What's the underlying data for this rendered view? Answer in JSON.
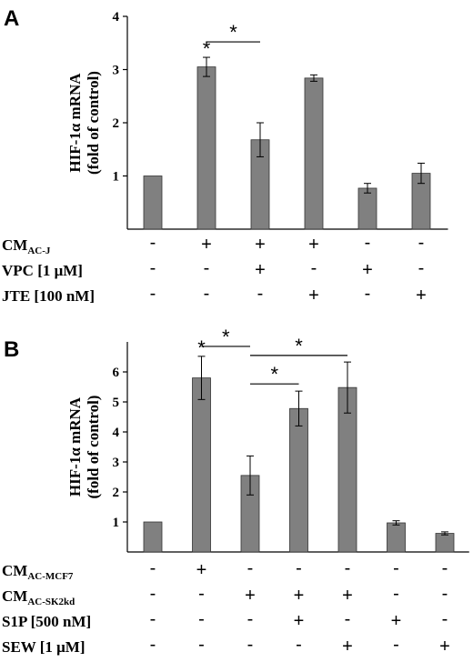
{
  "chart_data": [
    {
      "panel": "A",
      "type": "bar",
      "ylabel_line1": "HIF-1α mRNA",
      "ylabel_line2": "(fold of control)",
      "ylim": [
        0,
        4
      ],
      "yticks": [
        1,
        2,
        3,
        4
      ],
      "values": [
        1.0,
        3.05,
        1.68,
        2.84,
        0.77,
        1.05
      ],
      "errors": [
        0.0,
        0.18,
        0.32,
        0.06,
        0.09,
        0.19
      ],
      "bar_color": "#808080",
      "star_above_bars": [
        1
      ],
      "brackets": [
        {
          "from": 1,
          "to": 2,
          "y": 3.52,
          "label": "*"
        }
      ],
      "conditions": [
        {
          "label": "CM",
          "sub": "AC-J",
          "marks": [
            "-",
            "+",
            "+",
            "+",
            "-",
            "-"
          ]
        },
        {
          "label": "VPC [1 μM]",
          "sub": "",
          "marks": [
            "-",
            "-",
            "+",
            "-",
            "+",
            "-"
          ]
        },
        {
          "label": "JTE [100 nM]",
          "sub": "",
          "marks": [
            "-",
            "-",
            "-",
            "+",
            "-",
            "+"
          ]
        }
      ]
    },
    {
      "panel": "B",
      "type": "bar",
      "ylabel_line1": "HIF-1α mRNA",
      "ylabel_line2": "(fold of control)",
      "ylim": [
        0,
        7
      ],
      "yticks": [
        1,
        2,
        3,
        4,
        5,
        6
      ],
      "values": [
        1.0,
        5.8,
        2.55,
        4.78,
        5.48,
        0.97,
        0.62
      ],
      "errors": [
        0.0,
        0.72,
        0.65,
        0.58,
        0.85,
        0.07,
        0.05
      ],
      "bar_color": "#808080",
      "star_above_bars": [
        1
      ],
      "brackets": [
        {
          "from": 1,
          "to": 2,
          "y": 6.85,
          "label": "*"
        },
        {
          "from": 2,
          "to": 4,
          "y": 6.55,
          "label": "*"
        },
        {
          "from": 2,
          "to": 3,
          "y": 5.6,
          "label": "*"
        }
      ],
      "conditions": [
        {
          "label": "CM",
          "sub": "AC-MCF7",
          "marks": [
            "-",
            "+",
            "-",
            "-",
            "-",
            "-",
            "-"
          ]
        },
        {
          "label": "CM",
          "sub": "AC-SK2kd",
          "marks": [
            "-",
            "-",
            "+",
            "+",
            "+",
            "-",
            "-"
          ]
        },
        {
          "label": "S1P [500 nM]",
          "sub": "",
          "marks": [
            "-",
            "-",
            "-",
            "+",
            "-",
            "+",
            "-"
          ]
        },
        {
          "label": "SEW [1 μM]",
          "sub": "",
          "marks": [
            "-",
            "-",
            "-",
            "-",
            "+",
            "-",
            "+"
          ]
        }
      ]
    }
  ]
}
